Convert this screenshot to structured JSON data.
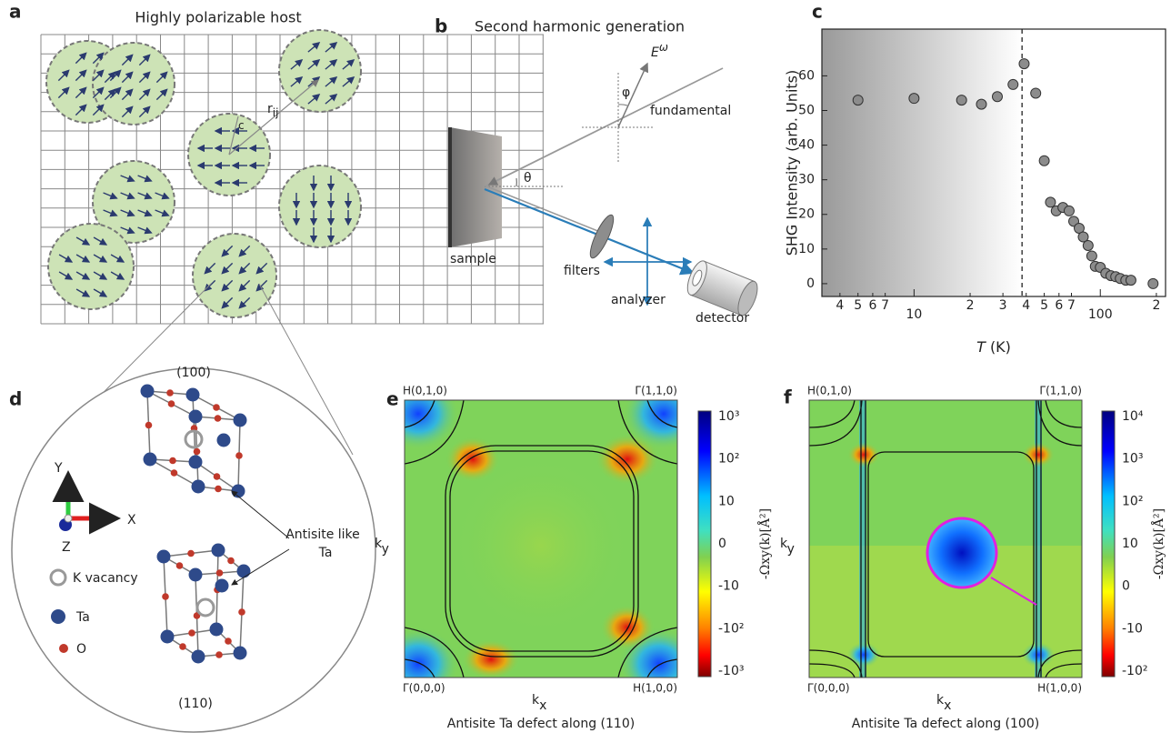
{
  "panel_labels": [
    "a",
    "b",
    "c",
    "d",
    "e",
    "f"
  ],
  "panel_a": {
    "title": "Highly polarizable host",
    "r_ij": {
      "symbol": "r",
      "sub": "ij"
    },
    "r_c": {
      "symbol": "r",
      "sub": "c"
    }
  },
  "panel_b": {
    "title": "Second harmonic  generation",
    "field": {
      "symbol": "E",
      "sup": "ω"
    },
    "phi": "φ",
    "fundamental": "fundamental",
    "theta": "θ",
    "sample": "sample",
    "filters": "filters",
    "analyzer": "analyzer",
    "detector": "detector"
  },
  "chart_data": {
    "type": "scatter",
    "y_label": "SHG Intensity (arb. Units)",
    "x_label_symbol": "T",
    "x_label_unit": "(K)",
    "x": [
      5,
      10,
      18,
      23,
      28,
      34,
      39,
      45,
      50,
      54,
      58,
      63,
      68,
      72,
      77,
      81,
      86,
      90,
      94,
      100,
      107,
      114,
      121,
      128,
      137,
      146,
      192
    ],
    "values": [
      53,
      53.5,
      53,
      51.8,
      54,
      57.5,
      63.5,
      55,
      35.5,
      23.5,
      21,
      22,
      21,
      18,
      16,
      13.5,
      11,
      8,
      5,
      4.7,
      3,
      2.3,
      2,
      1.5,
      1,
      1,
      0
    ],
    "color": "#8c8c8c",
    "log_x": true,
    "transition_line": 38,
    "xlim": [
      3.2,
      224
    ],
    "ylim": [
      -3.7,
      73.5
    ],
    "xticks": [
      4,
      5,
      6,
      7,
      10,
      {
        "value": 20,
        "label": "2"
      },
      {
        "value": 30,
        "label": "3"
      },
      {
        "value": 40,
        "label": "4"
      },
      {
        "value": 50,
        "label": "5"
      },
      {
        "value": 60,
        "label": "6"
      },
      {
        "value": 70,
        "label": "7"
      },
      100,
      {
        "value": 200,
        "label": "2"
      }
    ],
    "yticks": [
      0,
      10,
      20,
      30,
      40,
      50,
      60
    ]
  },
  "panel_d": {
    "plane_top": "(100)",
    "plane_bottom": "(110)",
    "axis_y": "Y",
    "axis_x": "X",
    "axis_z": "Z",
    "legend": [
      "K vacancy",
      "Ta",
      "O"
    ],
    "annotation": [
      "Antisite like",
      "Ta"
    ]
  },
  "panel_e": {
    "corners": [
      "H(0,1,0)",
      "Γ(1,1,0)",
      "Γ(0,0,0)",
      "H(1,0,0)"
    ],
    "ky": {
      "symbol": "k",
      "sub": "y"
    },
    "kx": {
      "symbol": "k",
      "sub": "x"
    },
    "caption": "Antisite Ta defect along (110)",
    "colorbar_ticks": [
      "10³",
      "10²",
      "10",
      "0",
      "-10",
      "-10²",
      "-10³"
    ],
    "colorbar_label": "-Ωxy(k)[Å²]"
  },
  "panel_f": {
    "corners": [
      "H(0,1,0)",
      "Γ(1,1,0)",
      "Γ(0,0,0)",
      "H(1,0,0)"
    ],
    "ky": {
      "symbol": "k",
      "sub": "y"
    },
    "kx": {
      "symbol": "k",
      "sub": "x"
    },
    "caption": "Antisite Ta defect along (100)",
    "colorbar_ticks": [
      "10⁴",
      "10³",
      "10²",
      "10",
      "0",
      "-10",
      "-10²"
    ],
    "colorbar_label": "-Ωxy(k)[Å²]"
  }
}
